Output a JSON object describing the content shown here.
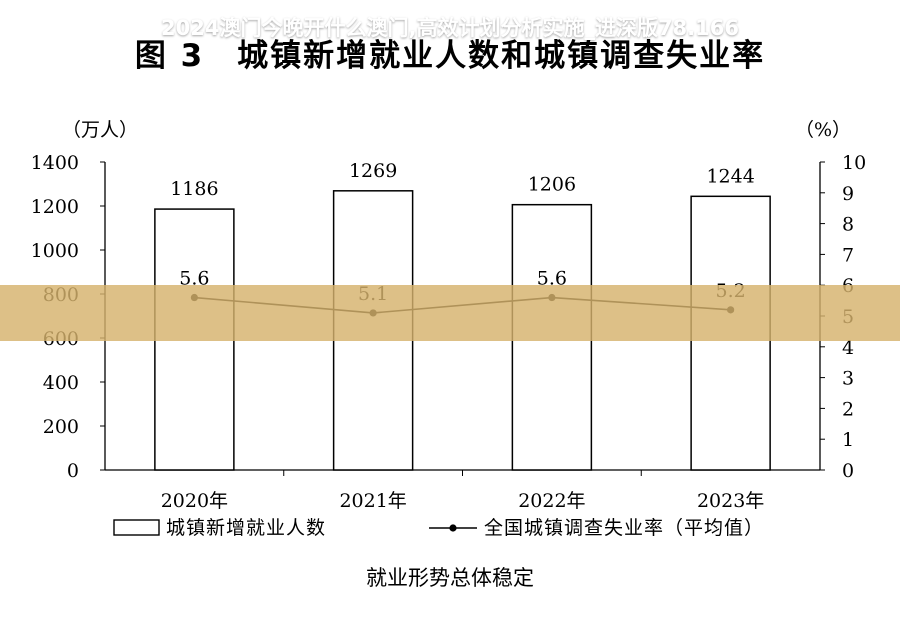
{
  "chart_data": {
    "type": "bar",
    "title": "图 3　城镇新增就业人数和城镇调查失业率",
    "caption": "就业形势总体稳定",
    "categories": [
      "2020年",
      "2021年",
      "2022年",
      "2023年"
    ],
    "left_unit": "（万人）",
    "right_unit": "（%）",
    "ylim": [
      0,
      1400
    ],
    "y_ticks": [
      0,
      200,
      400,
      600,
      800,
      1000,
      1200,
      1400
    ],
    "y2lim": [
      0,
      10
    ],
    "y2_ticks": [
      0,
      1,
      2,
      3,
      4,
      5,
      6,
      7,
      8,
      9,
      10
    ],
    "series": [
      {
        "name": "城镇新增就业人数",
        "type": "bar",
        "axis": "left",
        "values": [
          1186,
          1269,
          1206,
          1244
        ],
        "labels": [
          "1186",
          "1269",
          "1206",
          "1244"
        ]
      },
      {
        "name": "全国城镇调查失业率（平均值）",
        "type": "line",
        "axis": "right",
        "values": [
          5.6,
          5.1,
          5.6,
          5.2
        ],
        "labels": [
          "5.6",
          "5.1",
          "5.6",
          "5.2"
        ]
      }
    ],
    "legend_position": "bottom",
    "grid": false,
    "colors": {
      "bar_fill": "#ffffff",
      "bar_stroke": "#000000",
      "line": "#000000"
    }
  },
  "overlay": {
    "text": "2024澳门今晚开什么澳门,高效计划分析实施_进深版78.166",
    "color": "#d6b26c"
  }
}
